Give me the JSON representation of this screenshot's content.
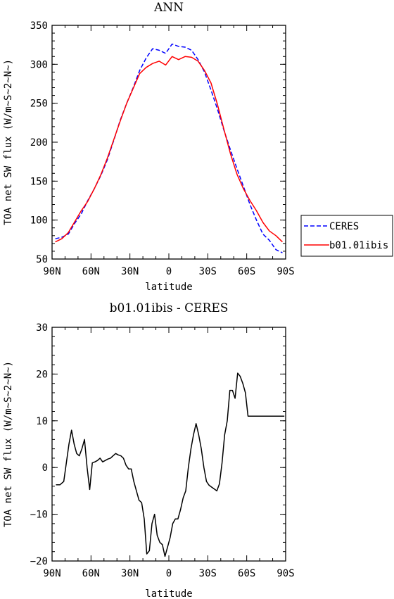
{
  "chart_data": [
    {
      "type": "line",
      "title": "ANN",
      "xlabel": "latitude",
      "ylabel": "TOA net SW flux (W/m~S~2~N~)",
      "x_ticks": [
        "90N",
        "60N",
        "30N",
        "0",
        "30S",
        "60S",
        "90S"
      ],
      "y_ticks": [
        50,
        100,
        150,
        200,
        250,
        300,
        350
      ],
      "xlim": [
        90,
        -90
      ],
      "ylim": [
        50,
        350
      ],
      "x": [
        87.5,
        82.5,
        77.5,
        72.5,
        67.5,
        62.5,
        57.5,
        52.5,
        47.5,
        42.5,
        37.5,
        32.5,
        27.5,
        22.5,
        17.5,
        12.5,
        7.5,
        2.5,
        -2.5,
        -7.5,
        -12.5,
        -17.5,
        -22.5,
        -27.5,
        -32.5,
        -37.5,
        -42.5,
        -47.5,
        -52.5,
        -57.5,
        -62.5,
        -67.5,
        -72.5,
        -77.5,
        -82.5,
        -87.5
      ],
      "legend": {
        "position": "right"
      },
      "series": [
        {
          "name": "CERES",
          "color": "#0000ff",
          "dash": "dashed",
          "values": [
            76,
            78,
            82,
            96,
            108,
            125,
            140,
            157,
            177,
            202,
            228,
            250,
            270,
            292,
            308,
            320,
            318,
            314,
            326,
            323,
            322,
            318,
            306,
            290,
            267,
            242,
            215,
            190,
            166,
            143,
            120,
            100,
            82,
            74,
            62,
            58
          ]
        },
        {
          "name": "b01.01ibis",
          "color": "#ff0000",
          "dash": "solid",
          "values": [
            72,
            76,
            84,
            98,
            112,
            124,
            140,
            158,
            179,
            203,
            227,
            250,
            269,
            288,
            296,
            301,
            304,
            299,
            310,
            306,
            310,
            309,
            304,
            292,
            276,
            248,
            216,
            185,
            159,
            140,
            125,
            112,
            97,
            86,
            80,
            72
          ]
        }
      ]
    },
    {
      "type": "line",
      "title": "b01.01ibis - CERES",
      "xlabel": "latitude",
      "ylabel": "TOA net SW flux (W/m~S~2~N~)",
      "x_ticks": [
        "90N",
        "60N",
        "30N",
        "0",
        "30S",
        "60S",
        "90S"
      ],
      "y_ticks": [
        -20,
        -10,
        0,
        10,
        20,
        30
      ],
      "xlim": [
        90,
        -90
      ],
      "ylim": [
        -20,
        30
      ],
      "series": [
        {
          "color": "#000000",
          "x": [
            87,
            84,
            81,
            79,
            77,
            75,
            73,
            71,
            69,
            67,
            65,
            63,
            61,
            59,
            57,
            55,
            53,
            51,
            49,
            47,
            45,
            43,
            41,
            39,
            37,
            35,
            33,
            31,
            29,
            27,
            25,
            23,
            21,
            19,
            17,
            15,
            13,
            11,
            9,
            7,
            5,
            3,
            1,
            -1,
            -3,
            -5,
            -7,
            -9,
            -11,
            -13,
            -15,
            -17,
            -19,
            -21,
            -23,
            -25,
            -27,
            -29,
            -31,
            -33,
            -35,
            -37,
            -39,
            -41,
            -43,
            -45,
            -47,
            -49,
            -51,
            -53,
            -55,
            -57,
            -59,
            -61,
            -63,
            -65,
            -67,
            -69,
            -71,
            -73,
            -75,
            -77,
            -79,
            -81,
            -83,
            -85,
            -87,
            -89
          ],
          "values": [
            -3.7,
            -3.7,
            -3.0,
            1.0,
            5.0,
            8.0,
            5.0,
            3.0,
            2.5,
            4.0,
            6.0,
            0.0,
            -4.7,
            1.0,
            1.2,
            1.5,
            2.0,
            1.2,
            1.5,
            1.8,
            2.0,
            2.5,
            3.0,
            2.7,
            2.5,
            2.0,
            0.5,
            -0.3,
            -0.3,
            -3.0,
            -5.0,
            -7.0,
            -7.5,
            -11.0,
            -18.5,
            -17.8,
            -12.0,
            -10.0,
            -14.5,
            -16.0,
            -16.5,
            -19.0,
            -17.0,
            -15.0,
            -12.0,
            -11.0,
            -11.0,
            -9.0,
            -6.5,
            -5.0,
            0.0,
            4.0,
            7.0,
            9.4,
            7.0,
            4.0,
            0.0,
            -3.0,
            -3.8,
            -4.2,
            -4.6,
            -5.0,
            -3.5,
            1.0,
            7.0,
            10.0,
            16.5,
            16.5,
            14.8,
            20.2,
            19.5,
            18.0,
            16.0,
            11.0,
            11.0,
            11.0,
            11.0,
            11.0,
            11.0,
            11.0,
            11.0,
            11.0,
            11.0,
            11.0,
            11.0,
            11.0,
            11.0,
            11.0
          ]
        }
      ]
    }
  ]
}
